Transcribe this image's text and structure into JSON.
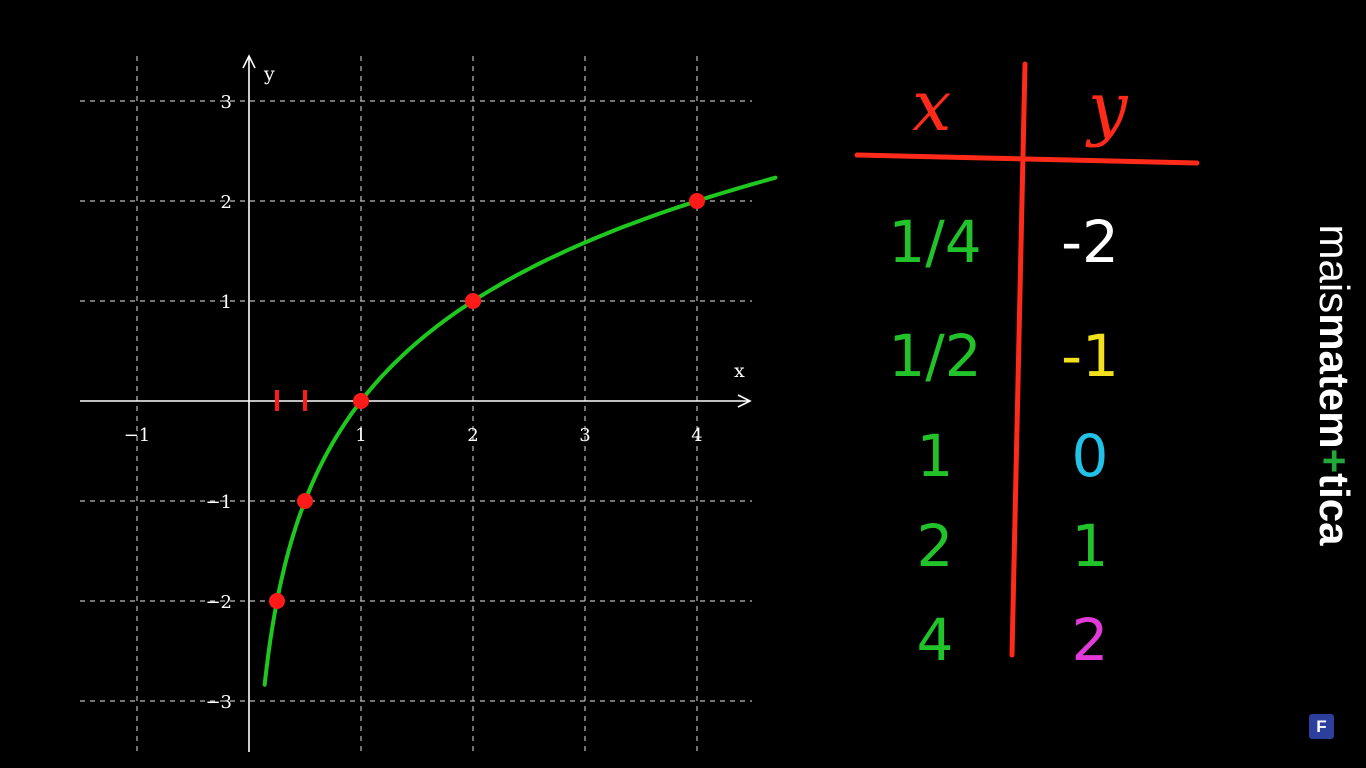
{
  "chart_data": {
    "type": "line",
    "xlabel": "x",
    "ylabel": "y",
    "xlim": [
      -1.5,
      4.5
    ],
    "ylim": [
      -3.5,
      3.5
    ],
    "grid": true,
    "x_ticks": [
      "−1",
      "1",
      "2",
      "3",
      "4"
    ],
    "x_tick_values": [
      -1,
      1,
      2,
      3,
      4
    ],
    "y_ticks": [
      "3",
      "2",
      "1",
      "−1",
      "−2",
      "−3"
    ],
    "y_tick_values": [
      3,
      2,
      1,
      -1,
      -2,
      -3
    ],
    "series": [
      {
        "color": "#1ec81e",
        "function": "log2(x)",
        "x_range": [
          0.14,
          4.7
        ]
      }
    ],
    "points": [
      {
        "x": 0.25,
        "y": -2
      },
      {
        "x": 0.5,
        "y": -1
      },
      {
        "x": 1,
        "y": 0
      },
      {
        "x": 2,
        "y": 1
      },
      {
        "x": 4,
        "y": 2
      }
    ],
    "tick_marks_on_x_axis": [
      0.25,
      0.5
    ],
    "point_color": "#ff1a1a"
  },
  "table": {
    "header_x": "x",
    "header_y": "y",
    "rows": [
      {
        "x": "1/4",
        "y": "-2",
        "y_color": "#ffffff"
      },
      {
        "x": "1/2",
        "y": "-1",
        "y_color": "#f2e01c"
      },
      {
        "x": "1",
        "y": "0",
        "y_color": "#22c2e8"
      },
      {
        "x": "2",
        "y": "1",
        "y_color": "#22c22a"
      },
      {
        "x": "4",
        "y": "2",
        "y_color": "#e23ad9"
      }
    ],
    "x_color": "#22c22a",
    "line_color": "#ff2a1a"
  },
  "brand": {
    "light": "mais",
    "bold_start": "matem",
    "plus": "+",
    "bold_end": "tica",
    "badge": "F"
  }
}
